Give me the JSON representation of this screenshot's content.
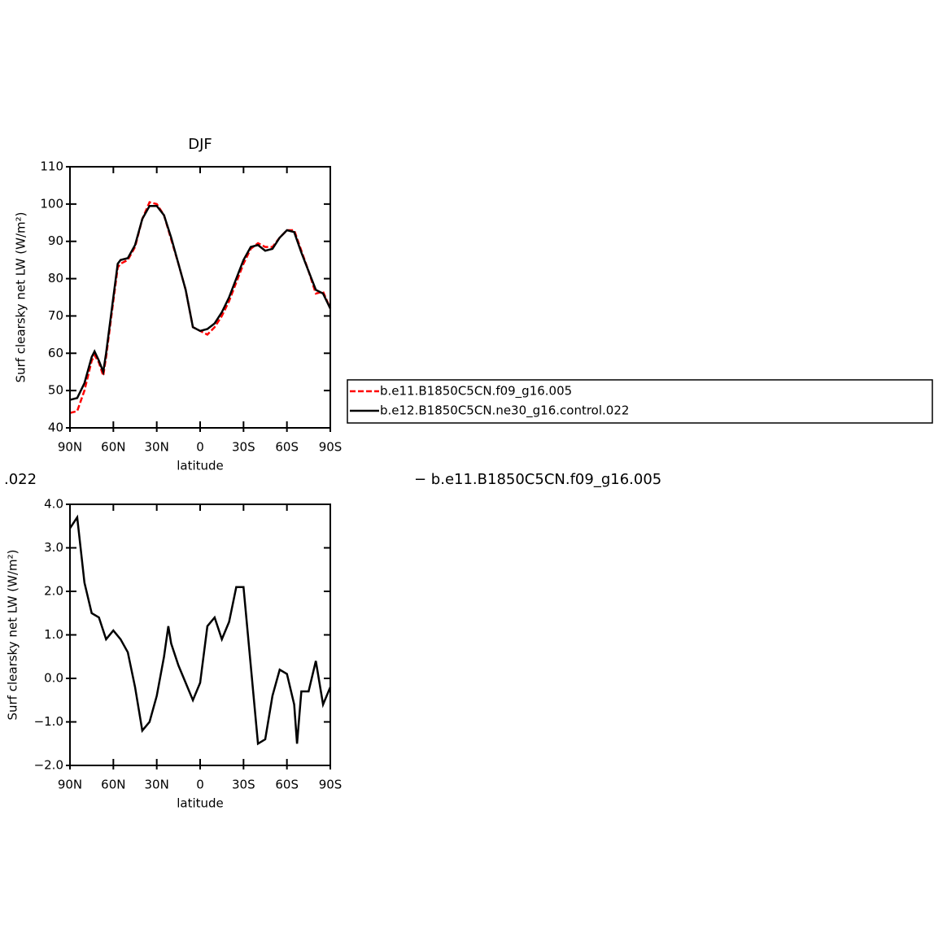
{
  "chart_data": [
    {
      "type": "line",
      "title": "DJF",
      "xlabel": "latitude",
      "ylabel": "Surf clearsky net LW (W/m²)",
      "x": [
        90,
        85,
        80,
        75,
        73,
        70,
        67,
        65,
        60,
        57,
        55,
        50,
        45,
        40,
        35,
        30,
        25,
        20,
        15,
        10,
        5,
        0,
        -5,
        -10,
        -15,
        -20,
        -25,
        -30,
        -35,
        -40,
        -45,
        -50,
        -55,
        -60,
        -65,
        -70,
        -75,
        -80,
        -85,
        -90
      ],
      "series": [
        {
          "name": "b.e11.B1850C5CN.f09_g16.005",
          "color": "#ff0000",
          "dashed": true,
          "values": [
            44,
            44.5,
            50,
            58,
            59.5,
            57.5,
            54,
            59,
            74,
            83,
            84,
            85,
            88.5,
            96,
            100.5,
            100,
            97,
            90.5,
            84,
            77,
            67,
            66,
            65,
            67,
            70,
            74,
            79,
            84,
            88,
            89.5,
            88.5,
            88.5,
            91,
            93,
            93,
            87.5,
            82,
            76,
            76.5,
            72
          ]
        },
        {
          "name": "b.e12.B1850C5CN.ne30_g16.control.022",
          "color": "#000000",
          "dashed": false,
          "values": [
            47.5,
            48,
            52,
            59,
            60.5,
            58,
            55,
            60,
            75,
            84,
            85,
            85.5,
            89,
            96,
            99.5,
            99.5,
            97,
            91,
            84,
            77,
            67,
            66,
            66.5,
            68,
            71,
            75,
            80,
            85,
            88.5,
            89,
            87.5,
            88,
            91,
            93,
            92.5,
            87,
            82,
            77,
            76,
            72
          ]
        }
      ],
      "xlim": [
        90,
        -90
      ],
      "xticks": [
        {
          "value": 90,
          "label": "90N"
        },
        {
          "value": 60,
          "label": "60N"
        },
        {
          "value": 30,
          "label": "30N"
        },
        0,
        {
          "value": -30,
          "label": "30S"
        },
        {
          "value": -60,
          "label": "60S"
        },
        {
          "value": -90,
          "label": "90S"
        }
      ],
      "ylim": [
        40,
        110
      ],
      "yticks": [
        40,
        50,
        60,
        70,
        80,
        90,
        100,
        110
      ],
      "legend": "right"
    },
    {
      "type": "line",
      "title_parts": [
        ".022",
        "− b.e11.B1850C5CN.f09_g16.005"
      ],
      "xlabel": "latitude",
      "ylabel": "Surf clearsky net LW (W/m²)",
      "x": [
        90,
        85,
        80,
        75,
        70,
        65,
        60,
        55,
        50,
        45,
        40,
        35,
        30,
        25,
        22,
        20,
        15,
        10,
        5,
        0,
        -5,
        -10,
        -15,
        -20,
        -25,
        -30,
        -35,
        -40,
        -45,
        -50,
        -55,
        -60,
        -65,
        -67,
        -70,
        -75,
        -80,
        -85,
        -90
      ],
      "series": [
        {
          "color": "#000000",
          "dashed": false,
          "values": [
            3.45,
            3.7,
            2.2,
            1.5,
            1.4,
            0.9,
            1.1,
            0.9,
            0.6,
            -0.2,
            -1.2,
            -1.0,
            -0.4,
            0.5,
            1.2,
            0.8,
            0.3,
            -0.1,
            -0.5,
            -0.1,
            1.2,
            1.4,
            0.9,
            1.3,
            2.1,
            2.1,
            0.3,
            -1.5,
            -1.4,
            -0.4,
            0.2,
            0.1,
            -0.6,
            -1.5,
            -0.3,
            -0.3,
            0.4,
            -0.6,
            -0.2
          ]
        }
      ],
      "xlim": [
        90,
        -90
      ],
      "xticks": [
        {
          "value": 90,
          "label": "90N"
        },
        {
          "value": 60,
          "label": "60N"
        },
        {
          "value": 30,
          "label": "30N"
        },
        0,
        {
          "value": -30,
          "label": "30S"
        },
        {
          "value": -60,
          "label": "60S"
        },
        {
          "value": -90,
          "label": "90S"
        }
      ],
      "ylim": [
        -2,
        4
      ],
      "yticks": [
        {
          "value": -2,
          "label": "−2.0"
        },
        {
          "value": -1,
          "label": "−1.0"
        },
        {
          "value": 0,
          "label": "0.0"
        },
        {
          "value": 1,
          "label": "1.0"
        },
        {
          "value": 2,
          "label": "2.0"
        },
        {
          "value": 3,
          "label": "3.0"
        },
        {
          "value": 4,
          "label": "4.0"
        }
      ]
    }
  ]
}
